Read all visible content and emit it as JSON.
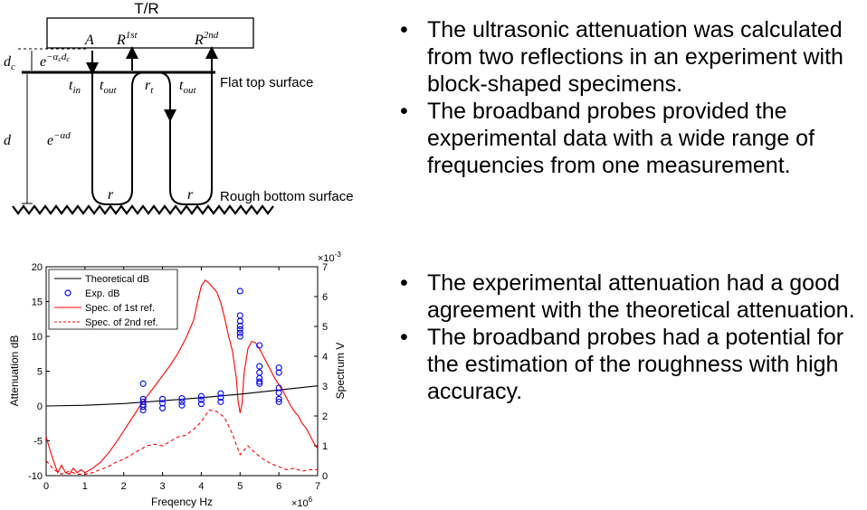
{
  "diagram": {
    "transducer_label": "T/R",
    "labels": {
      "A": "A",
      "R1": "R",
      "R1_sup": "1st",
      "R2": "R",
      "R2_sup": "2nd",
      "dc": "d",
      "dc_sub": "c",
      "d": "d",
      "exp_dc": "e",
      "exp_dc_sup": "−α",
      "exp_dc_sup_sub": "c",
      "exp_dc_sup_tail": "d",
      "exp_dc_sup_tail_sub": "c",
      "exp_d": "e",
      "exp_d_sup": "−αd",
      "t_in": "t",
      "t_in_sub": "in",
      "t_out1": "t",
      "t_out1_sub": "out",
      "r_t": "r",
      "r_t_sub": "t",
      "t_out2": "t",
      "t_out2_sub": "out",
      "r1": "r",
      "r2": "r"
    },
    "flat_surface_label": "Flat top surface",
    "rough_surface_label": "Rough bottom surface"
  },
  "chart_data": {
    "type": "line",
    "xlabel": "Freqency Hz",
    "ylabel_left": "Attenuation dB",
    "ylabel_right": "Spectrum V",
    "x_multiplier": "×10",
    "x_multiplier_exp": "6",
    "y2_multiplier": "×10",
    "y2_multiplier_exp": "-3",
    "xlim": [
      0,
      7
    ],
    "ylim_left": [
      -10,
      20
    ],
    "ylim_right": [
      0,
      7
    ],
    "xticks": [
      0,
      1,
      2,
      3,
      4,
      5,
      6,
      7
    ],
    "yticks_left": [
      -10,
      -5,
      0,
      5,
      10,
      15,
      20
    ],
    "yticks_right": [
      0,
      1,
      2,
      3,
      4,
      5,
      6,
      7
    ],
    "legend_position": "top-left",
    "colors": {
      "theoretical": "#000000",
      "exp": "#0000ff",
      "spec1": "#ff0000",
      "spec2": "#ff0000"
    },
    "series": [
      {
        "name": "Theoretical dB",
        "axis": "left",
        "style": "solid",
        "x": [
          0,
          1,
          2,
          3,
          4,
          5,
          6,
          7
        ],
        "y": [
          0,
          0.1,
          0.35,
          0.75,
          1.2,
          1.7,
          2.3,
          2.9
        ]
      },
      {
        "name": "Exp. dB",
        "axis": "left",
        "style": "markers",
        "x": [
          2.5,
          2.5,
          2.5,
          2.5,
          2.5,
          2.5,
          3,
          3,
          3,
          3.5,
          3.5,
          3.5,
          4,
          4,
          4,
          4.5,
          4.5,
          4.5,
          5,
          5,
          5,
          5,
          5,
          5,
          5,
          5.5,
          5.5,
          5.5,
          5.5,
          5.5,
          5.5,
          6,
          6,
          6,
          6,
          6,
          6
        ],
        "y": [
          3.2,
          1.0,
          0.6,
          0.2,
          -0.1,
          -0.6,
          1.0,
          0.4,
          -0.3,
          1.1,
          0.6,
          0.1,
          1.4,
          0.9,
          0.3,
          1.8,
          1.2,
          0.6,
          16.5,
          13.0,
          12.2,
          11.5,
          11.0,
          10.5,
          10.0,
          8.7,
          5.7,
          4.8,
          4.0,
          3.5,
          3.2,
          5.5,
          4.8,
          2.6,
          1.9,
          1.0,
          0.6
        ]
      },
      {
        "name": "Spec. of 1st ref.",
        "axis": "right",
        "style": "solid",
        "x": [
          0,
          0.1,
          0.2,
          0.3,
          0.4,
          0.5,
          0.6,
          0.7,
          0.8,
          0.9,
          1.0,
          1.2,
          1.4,
          1.6,
          1.8,
          2.0,
          2.2,
          2.4,
          2.6,
          2.8,
          3.0,
          3.2,
          3.4,
          3.6,
          3.8,
          3.9,
          4.0,
          4.1,
          4.2,
          4.3,
          4.4,
          4.5,
          4.6,
          4.7,
          4.8,
          4.9,
          4.95,
          5.0,
          5.05,
          5.1,
          5.2,
          5.3,
          5.4,
          5.5,
          5.6,
          5.7,
          5.8,
          5.9,
          6.0,
          6.1,
          6.2,
          6.3,
          6.4,
          6.5,
          6.6,
          6.7,
          6.8,
          6.9,
          7.0
        ],
        "y": [
          1.3,
          0.85,
          0.45,
          0.1,
          0.35,
          0.1,
          0.05,
          0.25,
          0.1,
          0.2,
          0.1,
          0.25,
          0.45,
          0.75,
          1.1,
          1.5,
          1.9,
          2.3,
          2.65,
          3.0,
          3.35,
          3.7,
          4.1,
          4.6,
          5.2,
          5.8,
          6.35,
          6.55,
          6.45,
          6.3,
          6.15,
          5.8,
          5.3,
          4.7,
          4.2,
          3.3,
          2.5,
          2.1,
          2.4,
          3.4,
          4.25,
          4.5,
          4.45,
          4.25,
          4.0,
          3.75,
          3.5,
          3.25,
          3.05,
          2.85,
          2.6,
          2.35,
          2.15,
          2.0,
          1.75,
          1.6,
          1.35,
          1.1,
          0.9
        ]
      },
      {
        "name": "Spec. of 2nd ref.",
        "axis": "right",
        "style": "dashed",
        "x": [
          0,
          0.2,
          0.4,
          0.6,
          0.8,
          1.0,
          1.2,
          1.4,
          1.6,
          1.8,
          2.0,
          2.2,
          2.4,
          2.6,
          2.8,
          3.0,
          3.2,
          3.4,
          3.6,
          3.8,
          4.0,
          4.2,
          4.4,
          4.6,
          4.8,
          5.0,
          5.2,
          5.4,
          5.6,
          5.8,
          6.0,
          6.2,
          6.4,
          6.6,
          6.8,
          7.0
        ],
        "y": [
          0.5,
          0.2,
          0.05,
          0.15,
          0.05,
          0.05,
          0.1,
          0.2,
          0.3,
          0.45,
          0.55,
          0.7,
          0.85,
          1.0,
          1.05,
          1.0,
          1.15,
          1.3,
          1.35,
          1.55,
          1.8,
          2.2,
          2.15,
          1.95,
          1.4,
          0.7,
          1.0,
          0.75,
          0.55,
          0.4,
          0.3,
          0.2,
          0.25,
          0.15,
          0.2,
          0.2
        ]
      }
    ]
  },
  "bullets_top": [
    "The ultrasonic attenuation was calculated from two reflections in an experiment with block-shaped specimens.",
    "The broadband probes provided the experimental data with a wide range of frequencies from one measurement."
  ],
  "bullets_bottom": [
    "The experimental attenuation had a good agreement with the theoretical attenuation.",
    "The broadband probes had a potential for the estimation of the roughness with high accuracy."
  ]
}
